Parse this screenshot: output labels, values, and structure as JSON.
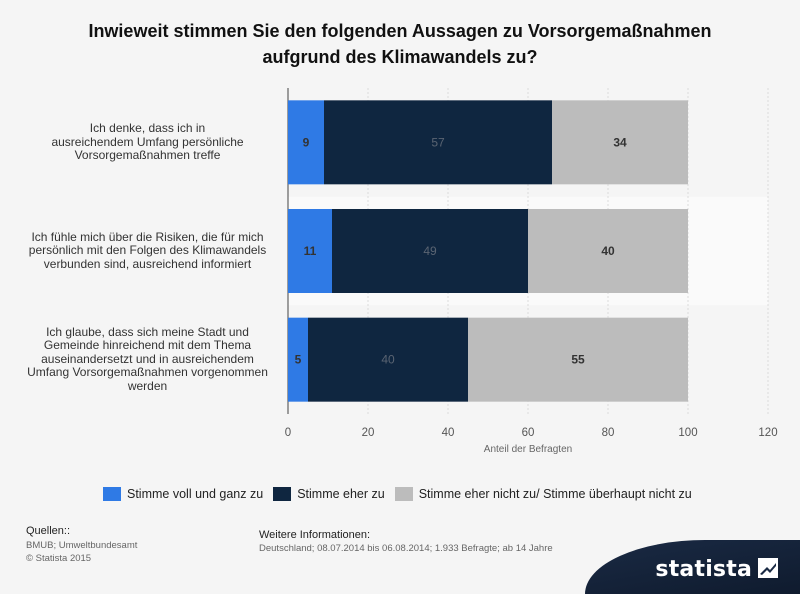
{
  "title_lines": [
    "Inwieweit stimmen Sie den folgenden Aussagen zu Vorsorgemaßnahmen",
    "aufgrund des Klimawandels zu?"
  ],
  "chart_data": {
    "type": "bar",
    "orientation": "horizontal",
    "stacked": true,
    "title": "Inwieweit stimmen Sie den folgenden Aussagen zu Vorsorgemaßnahmen aufgrund des Klimawandels zu?",
    "categories": [
      "Ich denke, dass ich in ausreichendem Umfang persönliche Vorsorgemaßnahmen treffe",
      "Ich fühle mich über die Risiken, die für mich persönlich mit den Folgen des Klimawandels verbunden sind, ausreichend informiert",
      "Ich glaube, dass sich meine Stadt und Gemeinde hinreichend mit dem Thema auseinandersetzt und in ausreichendem Umfang Vorsorgemaßnahmen vorgenommen werden"
    ],
    "category_lines": [
      [
        "Ich denke, dass ich in",
        "ausreichendem Umfang persönliche",
        "Vorsorgemaßnahmen treffe"
      ],
      [
        "Ich fühle mich über die Risiken, die für mich",
        "persönlich mit den Folgen des Klimawandels",
        "verbunden sind, ausreichend informiert"
      ],
      [
        "Ich glaube, dass sich meine Stadt und",
        "Gemeinde hinreichend mit dem Thema",
        "auseinandersetzt und in ausreichendem",
        "Umfang Vorsorgemaßnahmen vorgenommen",
        "werden"
      ]
    ],
    "series": [
      {
        "name": "Stimme voll und ganz zu",
        "color": "#2f7ae5",
        "values": [
          9,
          11,
          5
        ]
      },
      {
        "name": "Stimme eher zu",
        "color": "#0f2640",
        "values": [
          57,
          49,
          40
        ]
      },
      {
        "name": "Stimme eher nicht zu/ Stimme überhaupt nicht zu",
        "color": "#bcbcbc",
        "values": [
          34,
          40,
          55
        ]
      }
    ],
    "xlabel": "Anteil der Befragten",
    "xlim": [
      0,
      120
    ],
    "xticks": [
      0,
      20,
      40,
      60,
      80,
      100,
      120
    ],
    "grid": true,
    "legend_position": "bottom"
  },
  "sources": {
    "heading": "Quellen::",
    "lines": [
      "BMUB; Umweltbundesamt",
      "© Statista 2015"
    ]
  },
  "info": {
    "heading": "Weitere Informationen:",
    "text": "Deutschland; 08.07.2014 bis 06.08.2014; 1.933 Befragte; ab 14 Jahre"
  },
  "brand": {
    "name": "statista"
  }
}
